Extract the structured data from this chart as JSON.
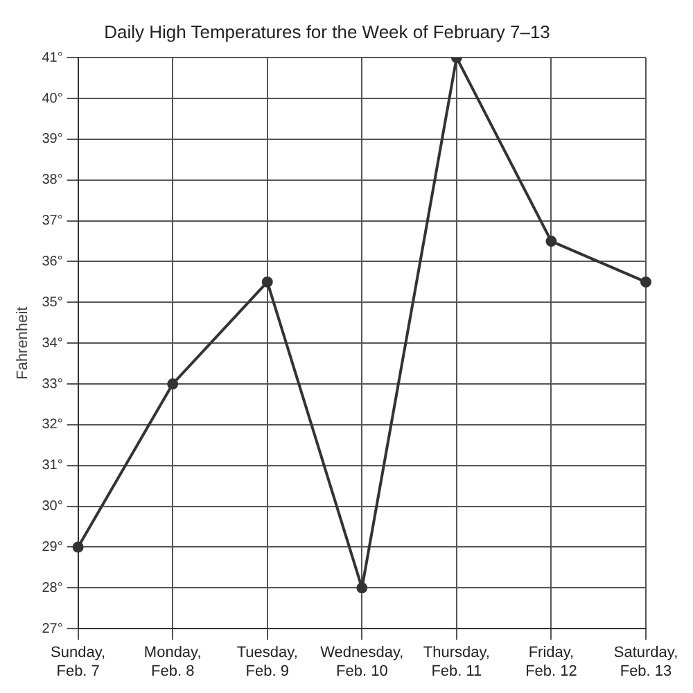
{
  "chart_data": {
    "type": "line",
    "title": "Daily High Temperatures for the Week of February 7–13",
    "ylabel": "Fahrenheit",
    "categories": [
      "Sunday,\nFeb. 7",
      "Monday,\nFeb. 8",
      "Tuesday,\nFeb. 9",
      "Wednesday,\nFeb. 10",
      "Thursday,\nFeb. 11",
      "Friday,\nFeb. 12",
      "Saturday,\nFeb. 13"
    ],
    "series": [
      {
        "color": "#333333",
        "values": [
          29,
          33,
          35.5,
          28,
          41,
          36.5,
          35.5
        ]
      }
    ],
    "ylim": [
      27,
      41
    ],
    "yticks": [
      {
        "value": 27,
        "label": "27°"
      },
      {
        "value": 28,
        "label": "28°"
      },
      {
        "value": 29,
        "label": "29°"
      },
      {
        "value": 30,
        "label": "30°"
      },
      {
        "value": 31,
        "label": "31°"
      },
      {
        "value": 32,
        "label": "32°"
      },
      {
        "value": 33,
        "label": "33°"
      },
      {
        "value": 34,
        "label": "34°"
      },
      {
        "value": 35,
        "label": "35°"
      },
      {
        "value": 36,
        "label": "36°"
      },
      {
        "value": 37,
        "label": "37°"
      },
      {
        "value": 38,
        "label": "38°"
      },
      {
        "value": 39,
        "label": "39°"
      },
      {
        "value": 40,
        "label": "40°"
      },
      {
        "value": 41,
        "label": "41°"
      }
    ],
    "grid": true,
    "marker": "circle",
    "line_style": "solid"
  }
}
